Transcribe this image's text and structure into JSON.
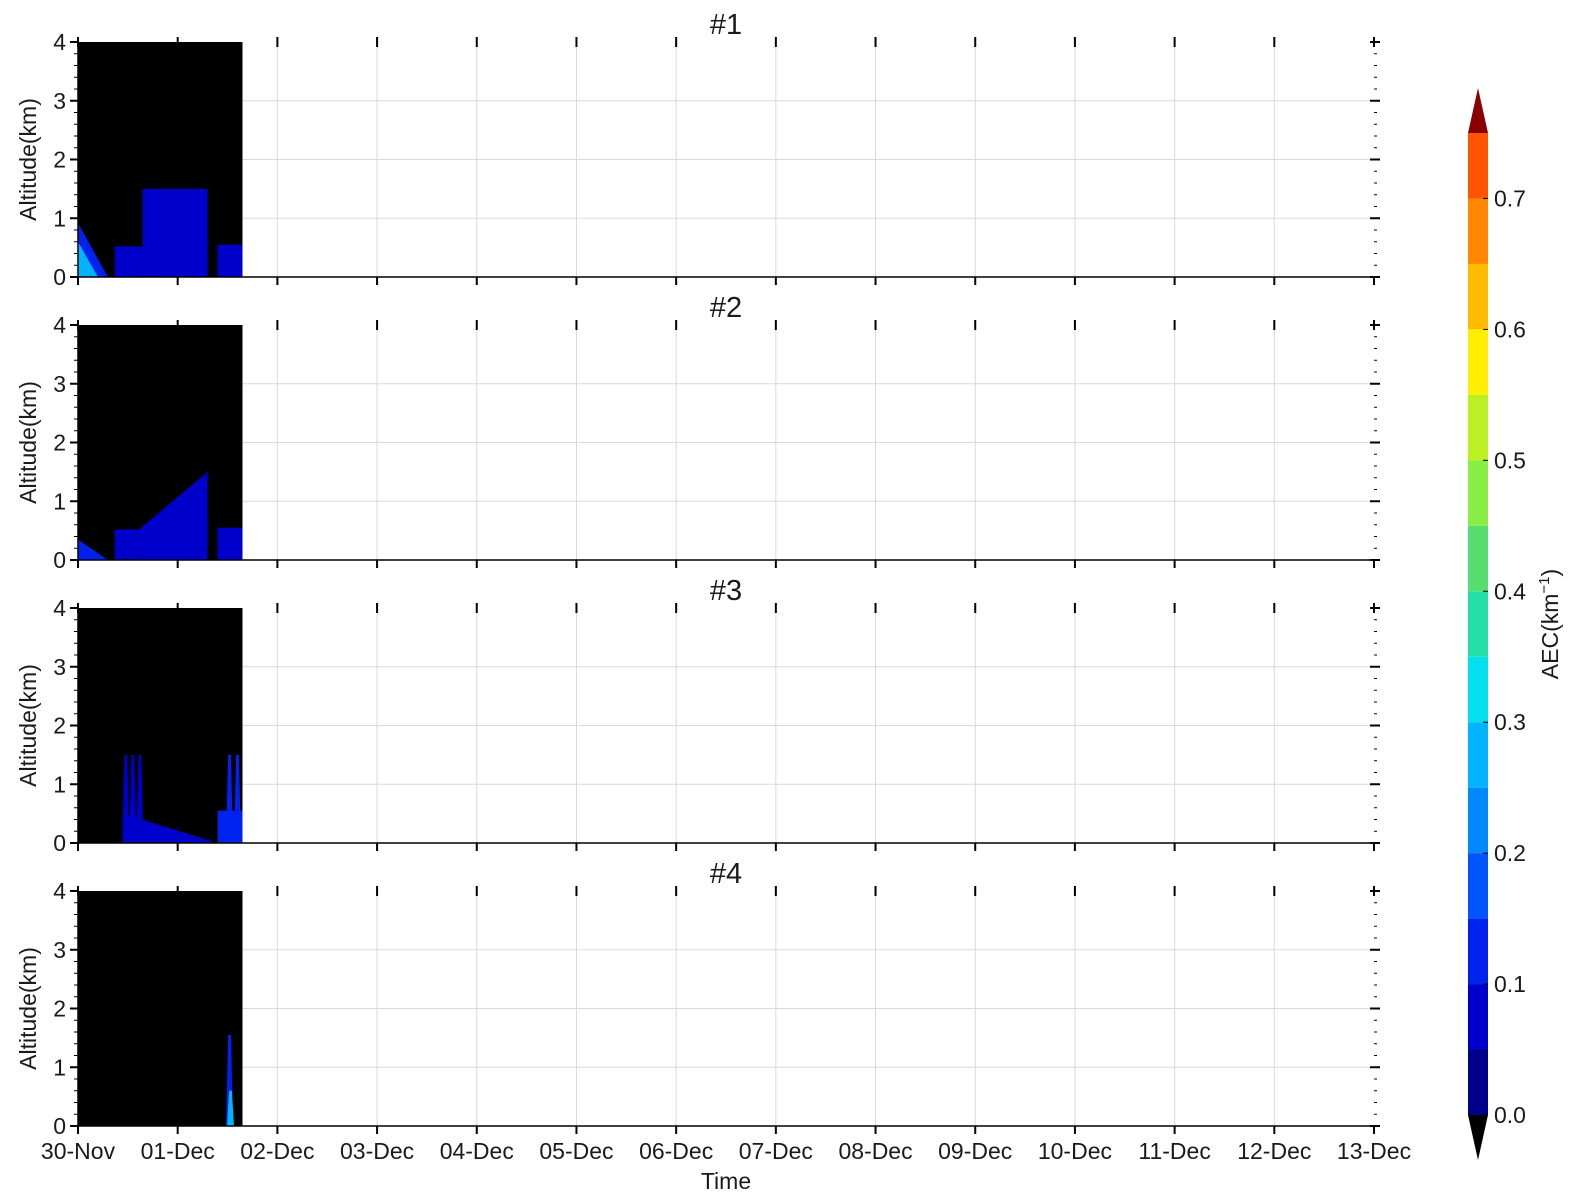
{
  "chart_data": {
    "type": "heatmap",
    "description_kind": "filled-contour time-altitude cross sections",
    "panels": [
      {
        "title": "#1",
        "ylabel": "Altitude(km)",
        "y_ticks": [
          "0",
          "1",
          "2",
          "3",
          "4"
        ],
        "ylim": [
          0,
          4
        ],
        "data_extent_days": [
          0,
          1.65
        ],
        "features": [
          {
            "kind": "rect",
            "t": [
              0.65,
              1.3
            ],
            "alt": [
              0,
              1.5
            ],
            "aec": 0.05
          },
          {
            "kind": "rect",
            "t": [
              0.37,
              0.65
            ],
            "alt": [
              0,
              0.52
            ],
            "aec": 0.05
          },
          {
            "kind": "rect",
            "t": [
              1.4,
              1.65
            ],
            "alt": [
              0,
              0.55
            ],
            "aec": 0.05
          },
          {
            "kind": "wedge",
            "t0": 0,
            "t1": 0.3,
            "alt_max": 0.92,
            "aec": 0.15
          },
          {
            "kind": "wedge",
            "t0": 0,
            "t1": 0.2,
            "alt_max": 0.6,
            "aec": 0.25
          }
        ]
      },
      {
        "title": "#2",
        "ylabel": "Altitude(km)",
        "y_ticks": [
          "0",
          "1",
          "2",
          "3",
          "4"
        ],
        "ylim": [
          0,
          4
        ],
        "data_extent_days": [
          0,
          1.65
        ],
        "features": [
          {
            "kind": "rect",
            "t": [
              0.37,
              0.6
            ],
            "alt": [
              0,
              0.52
            ],
            "aec": 0.05
          },
          {
            "kind": "ramp",
            "t": [
              0.6,
              1.3
            ],
            "alt_start": 0.5,
            "alt_end": 1.5,
            "aec": 0.05
          },
          {
            "kind": "rect",
            "t": [
              1.4,
              1.65
            ],
            "alt": [
              0,
              0.55
            ],
            "aec": 0.08
          },
          {
            "kind": "wedge",
            "t0": 0,
            "t1": 0.3,
            "alt_max": 0.35,
            "aec": 0.12
          }
        ]
      },
      {
        "title": "#3",
        "ylabel": "Altitude(km)",
        "y_ticks": [
          "0",
          "1",
          "2",
          "3",
          "4"
        ],
        "ylim": [
          0,
          4
        ],
        "data_extent_days": [
          0,
          1.65
        ],
        "features": [
          {
            "kind": "spike",
            "t": 0.48,
            "alt_max": 1.5,
            "aec": 0.08
          },
          {
            "kind": "spike",
            "t": 0.55,
            "alt_max": 1.5,
            "aec": 0.08
          },
          {
            "kind": "spike",
            "t": 0.62,
            "alt_max": 1.5,
            "aec": 0.08
          },
          {
            "kind": "ramp_down",
            "t": [
              0.45,
              1.4
            ],
            "alt_start": 0.5,
            "aec": 0.08
          },
          {
            "kind": "rect",
            "t": [
              1.4,
              1.65
            ],
            "alt": [
              0,
              0.55
            ],
            "aec": 0.1
          },
          {
            "kind": "spike",
            "t": 1.52,
            "alt_max": 1.5,
            "aec": 0.12
          },
          {
            "kind": "spike",
            "t": 1.6,
            "alt_max": 1.5,
            "aec": 0.12
          }
        ]
      },
      {
        "title": "#4",
        "ylabel": "Altitude(km)",
        "y_ticks": [
          "0",
          "1",
          "2",
          "3",
          "4"
        ],
        "ylim": [
          0,
          4
        ],
        "data_extent_days": [
          0,
          1.65
        ],
        "features": [
          {
            "kind": "spike",
            "t": 1.52,
            "alt_max": 1.55,
            "aec": 0.12
          },
          {
            "kind": "spike",
            "t": 1.53,
            "alt_max": 0.6,
            "aec": 0.3
          }
        ]
      }
    ],
    "xlabel": "Time",
    "x_ticks": [
      "30-Nov",
      "01-Dec",
      "02-Dec",
      "03-Dec",
      "04-Dec",
      "05-Dec",
      "06-Dec",
      "07-Dec",
      "08-Dec",
      "09-Dec",
      "10-Dec",
      "11-Dec",
      "12-Dec",
      "13-Dec"
    ],
    "grid": true,
    "colorbar": {
      "label": "AEC(km",
      "label_sup": "−1",
      "label_close": ")",
      "ticks": [
        "0.0",
        "0.1",
        "0.2",
        "0.3",
        "0.4",
        "0.5",
        "0.6",
        "0.7"
      ],
      "range": [
        0,
        0.75
      ],
      "levels": 15,
      "colors": [
        "#00008b",
        "#0000cd",
        "#0022ee",
        "#0055ff",
        "#0088ff",
        "#00b4ff",
        "#00e0ee",
        "#22e0a8",
        "#55dd70",
        "#88ee44",
        "#bbf022",
        "#ffee00",
        "#ffbb00",
        "#ff8800",
        "#ff5500",
        "#ee1100"
      ],
      "under_color": "#000000",
      "over_color": "#8b0000"
    },
    "background_color": "#000000"
  }
}
